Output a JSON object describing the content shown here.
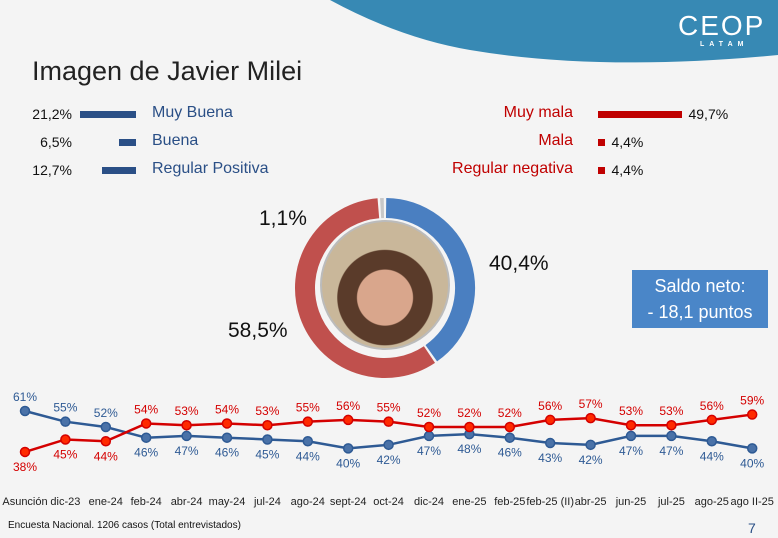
{
  "title": "Imagen de Javier Milei",
  "logo": {
    "name": "CEOP",
    "sub": "LATAM"
  },
  "positive": [
    {
      "label": "Muy Buena",
      "value": "21,2%",
      "num": 21.2
    },
    {
      "label": "Buena",
      "value": "6,5%",
      "num": 6.5
    },
    {
      "label": "Regular Positiva",
      "value": "12,7%",
      "num": 12.7
    }
  ],
  "negative": [
    {
      "label": "Muy mala",
      "value": "49,7%",
      "num": 49.7
    },
    {
      "label": "Mala",
      "value": "4,4%",
      "num": 4.4
    },
    {
      "label": "Regular negativa",
      "value": "4,4%",
      "num": 4.4
    }
  ],
  "donut": {
    "positive": "40,4%",
    "negative": "58,5%",
    "nsnc": "1,1%",
    "values": [
      40.4,
      58.5,
      1.1
    ],
    "colors": [
      "#4a7fc1",
      "#c0504d",
      "#c8c8c8"
    ]
  },
  "saldo": {
    "line1": "Saldo neto:",
    "line2": "- 18,1 puntos"
  },
  "chart_data": {
    "type": "line",
    "categories": [
      "Asunción",
      "dic-23",
      "ene-24",
      "feb-24",
      "abr-24",
      "may-24",
      "jul-24",
      "ago-24",
      "sept-24",
      "oct-24",
      "dic-24",
      "ene-25",
      "feb-25",
      "feb-25 (II)",
      "abr-25",
      "jun-25",
      "jul-25",
      "ago-25",
      "ago II-25"
    ],
    "series": [
      {
        "color": "#2e5a94",
        "values": [
          61,
          55,
          52,
          46,
          47,
          46,
          45,
          44,
          40,
          42,
          47,
          48,
          46,
          43,
          42,
          47,
          47,
          44,
          40
        ]
      },
      {
        "color": "#d40000",
        "values": [
          38,
          45,
          44,
          54,
          53,
          54,
          53,
          55,
          56,
          55,
          52,
          52,
          52,
          56,
          57,
          53,
          53,
          56,
          59
        ]
      }
    ]
  },
  "footer": "Encuesta Nacional. 1206 casos (Total entrevistados)",
  "page": "7"
}
